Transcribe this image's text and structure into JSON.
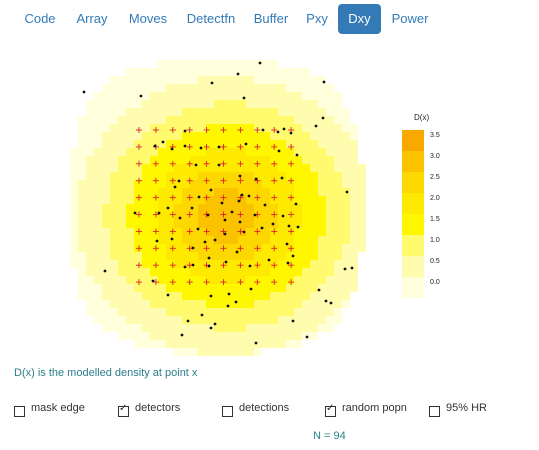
{
  "tabs": [
    {
      "label": "Code",
      "active": false
    },
    {
      "label": "Array",
      "active": false
    },
    {
      "label": "Moves",
      "active": false
    },
    {
      "label": "Detectfn",
      "active": false
    },
    {
      "label": "Buffer",
      "active": false
    },
    {
      "label": "Pxy",
      "active": false
    },
    {
      "label": "Dxy",
      "active": true
    },
    {
      "label": "Power",
      "active": false
    }
  ],
  "plot": {
    "legend_title": "D(x)",
    "legend_levels": [
      "3.5",
      "3.0",
      "2.5",
      "2.0",
      "1.5",
      "1.0",
      "0.5",
      "0.0"
    ],
    "legend_colors": [
      "#f9a800",
      "#fbc200",
      "#fdd800",
      "#feea00",
      "#fff700",
      "#fffa6e",
      "#fffcb0",
      "#ffffdc"
    ],
    "detector_color": "#e0202a",
    "point_color": "#111111"
  },
  "caption": "D(x) is the modelled density at point x",
  "checkboxes": [
    {
      "label": "mask edge",
      "checked": false
    },
    {
      "label": "detectors",
      "checked": true
    },
    {
      "label": "detections",
      "checked": false
    },
    {
      "label": "random popn",
      "checked": true
    },
    {
      "label": "95% HR",
      "checked": false
    }
  ],
  "population_label": "N = 94"
}
